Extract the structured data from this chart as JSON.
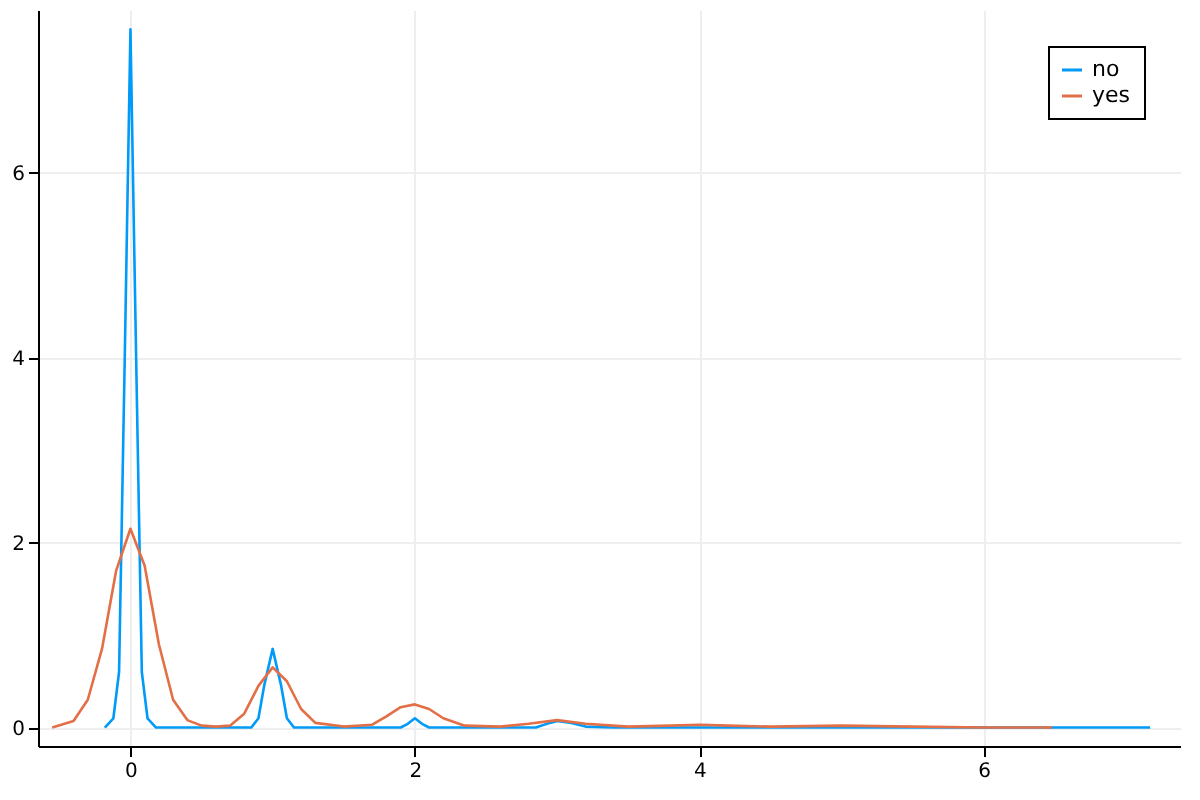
{
  "chart_data": {
    "type": "line",
    "xlim": [
      -0.65,
      7.38
    ],
    "ylim": [
      -0.2,
      7.76
    ],
    "xticks": [
      0,
      2,
      4,
      6
    ],
    "yticks": [
      0,
      2,
      4,
      6
    ],
    "grid": true,
    "legend": "top right",
    "line_style": "solid",
    "marker": "none",
    "series": [
      {
        "name": "no",
        "color": "#009af9",
        "x": [
          -0.18,
          -0.12,
          -0.08,
          -0.04,
          0,
          0.04,
          0.08,
          0.12,
          0.18,
          0.85,
          0.9,
          0.94,
          1,
          1.06,
          1.1,
          1.15,
          1.9,
          1.95,
          2,
          2.05,
          2.1,
          2.85,
          2.95,
          3,
          3.1,
          3.2,
          3.4,
          7.17
        ],
        "values": [
          0,
          0.1,
          0.6,
          4.0,
          7.55,
          4.0,
          0.6,
          0.1,
          0,
          0,
          0.1,
          0.45,
          0.85,
          0.45,
          0.1,
          0,
          0,
          0.04,
          0.1,
          0.04,
          0,
          0,
          0.05,
          0.07,
          0.05,
          0.01,
          0,
          0
        ]
      },
      {
        "name": "yes",
        "color": "#e26f46",
        "x": [
          -0.55,
          -0.4,
          -0.3,
          -0.2,
          -0.1,
          0,
          0.1,
          0.2,
          0.3,
          0.4,
          0.5,
          0.6,
          0.7,
          0.8,
          0.9,
          1,
          1.1,
          1.2,
          1.3,
          1.5,
          1.7,
          1.8,
          1.9,
          2,
          2.1,
          2.2,
          2.35,
          2.6,
          2.8,
          3,
          3.2,
          3.5,
          3.8,
          4,
          4.2,
          4.5,
          5,
          5.5,
          6,
          6.48
        ],
        "values": [
          0,
          0.07,
          0.3,
          0.85,
          1.7,
          2.15,
          1.75,
          0.9,
          0.3,
          0.08,
          0.02,
          0.01,
          0.02,
          0.15,
          0.45,
          0.65,
          0.5,
          0.2,
          0.05,
          0.01,
          0.03,
          0.12,
          0.22,
          0.25,
          0.2,
          0.1,
          0.02,
          0.01,
          0.04,
          0.08,
          0.04,
          0.01,
          0.02,
          0.03,
          0.02,
          0.01,
          0.02,
          0.01,
          0,
          0
        ]
      }
    ]
  }
}
